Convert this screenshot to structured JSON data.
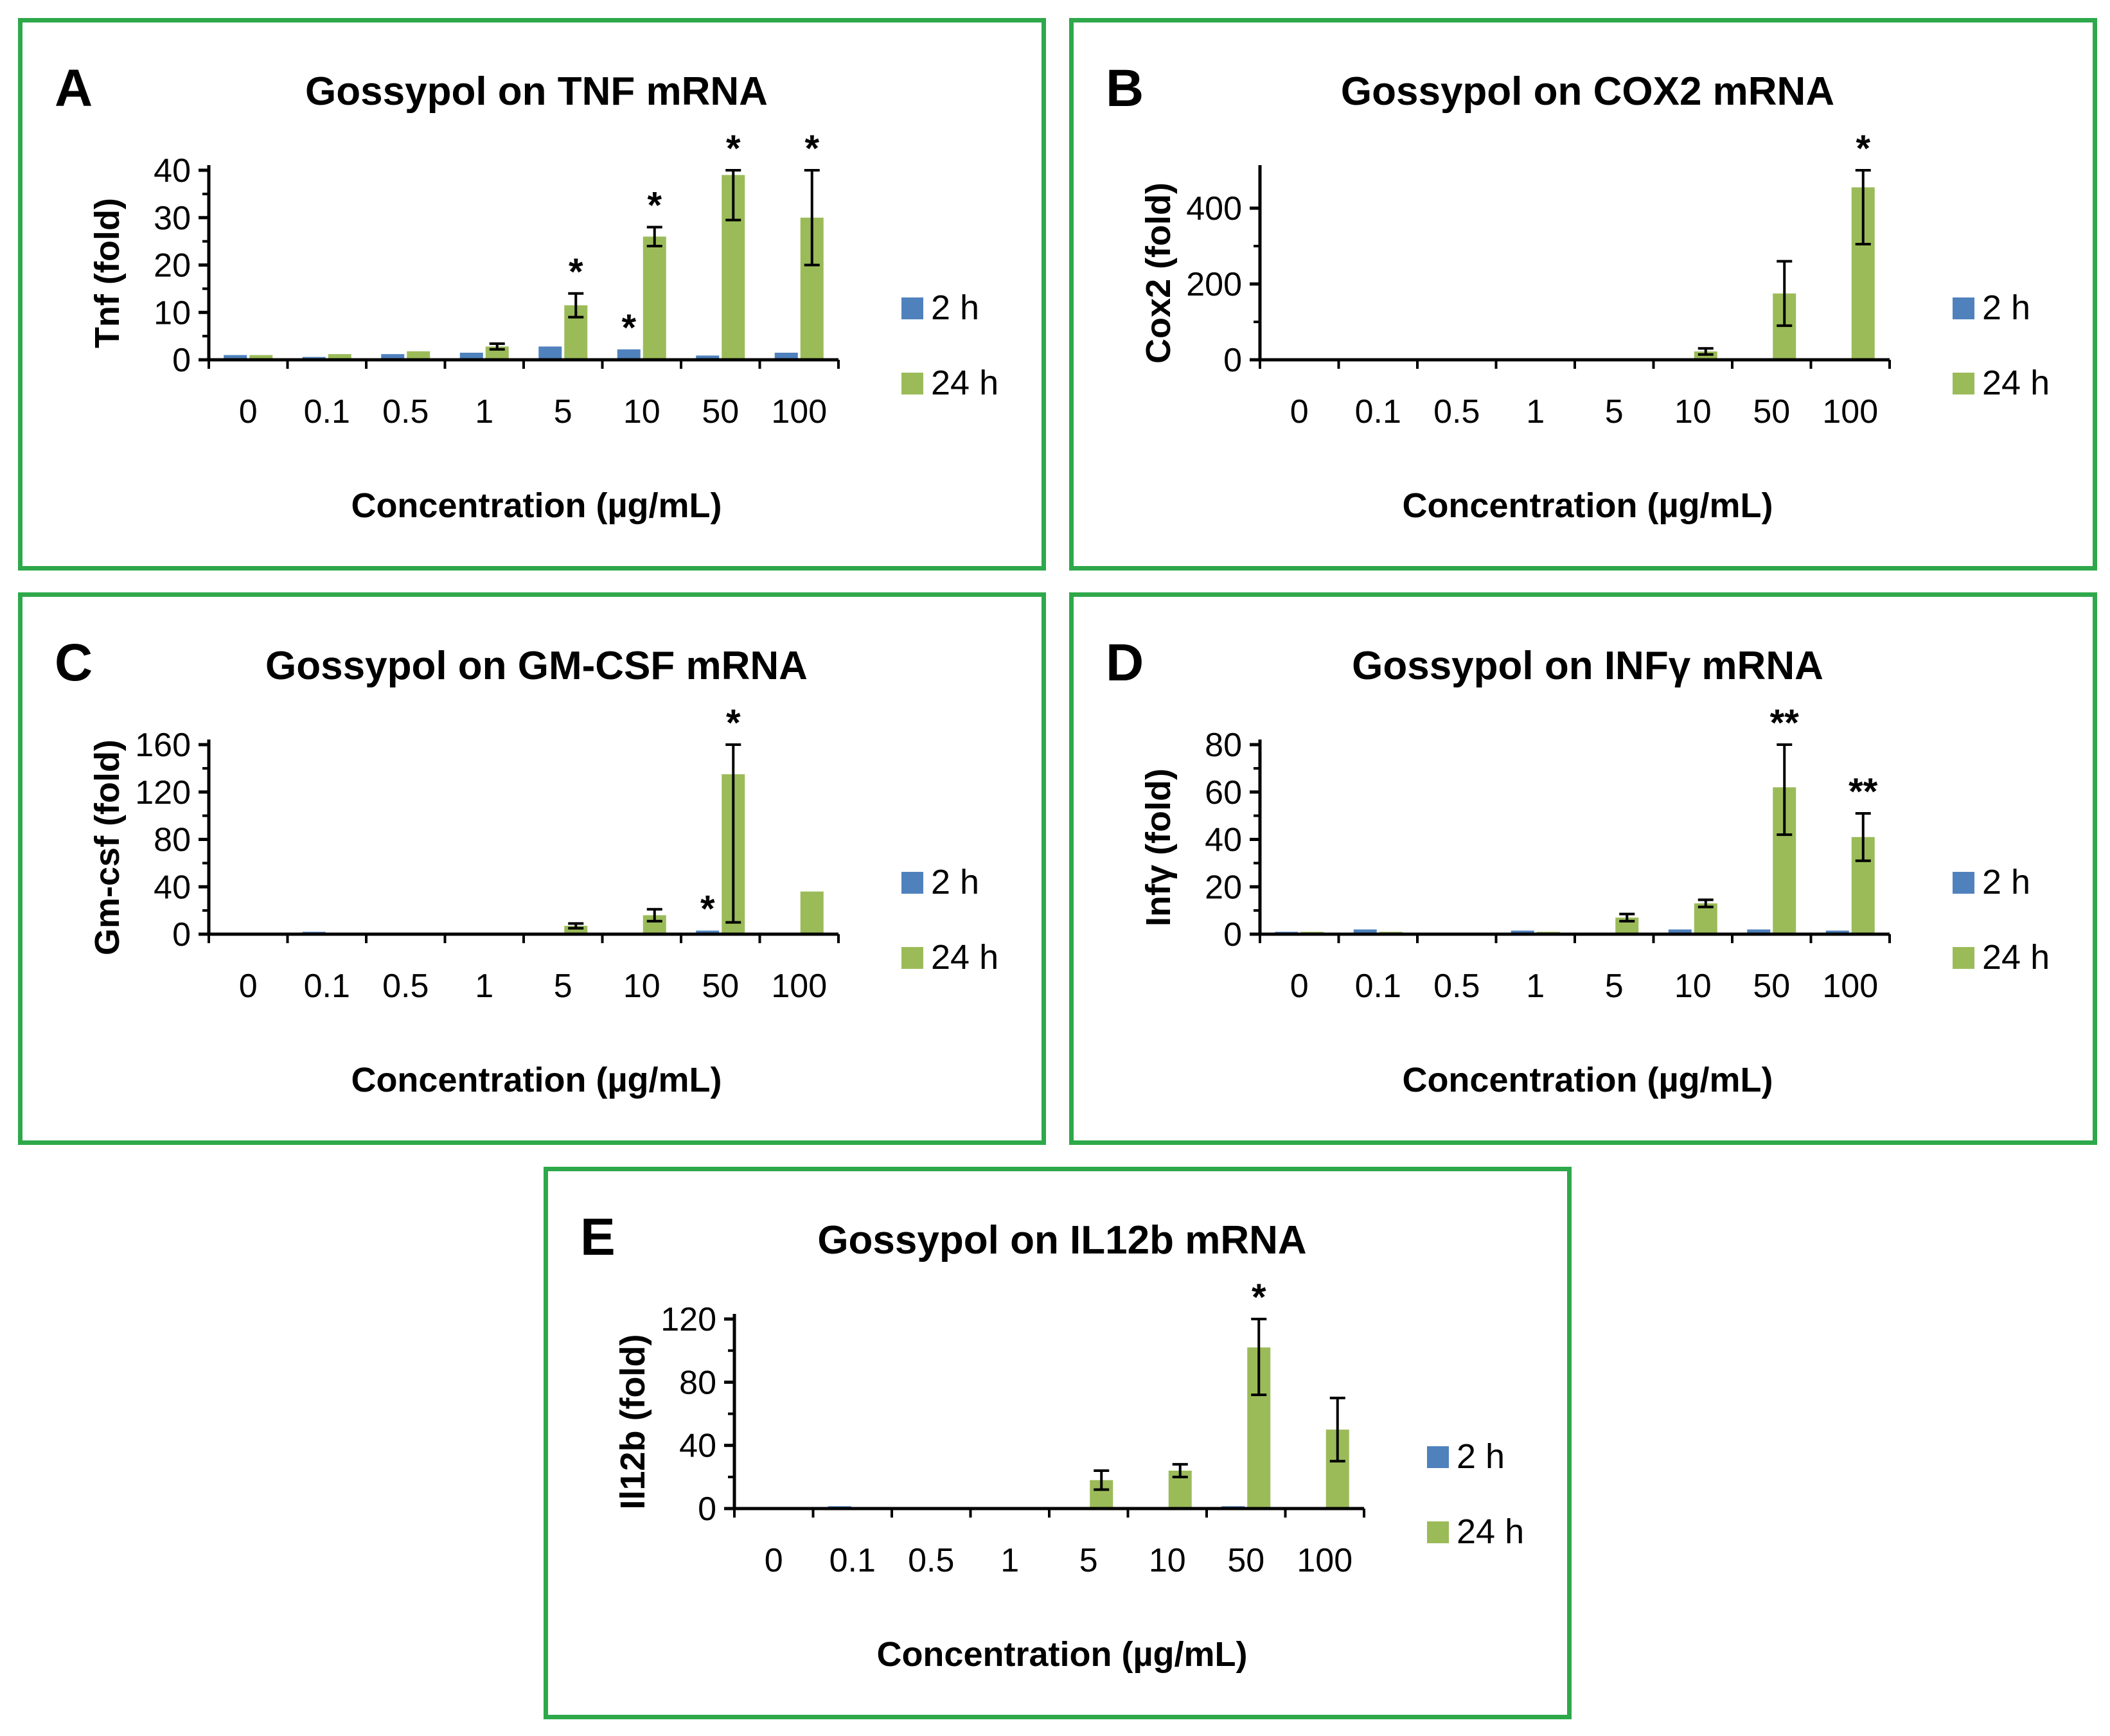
{
  "chart_data": [
    {
      "type": "bar",
      "panel": "A",
      "title": "Gossypol on TNF mRNA",
      "xlabel": "Concentration (µg/mL)",
      "ylabel": "Tnf (fold)",
      "categories": [
        "0",
        "0.1",
        "0.5",
        "1",
        "5",
        "10",
        "50",
        "100"
      ],
      "ylim": [
        0,
        40
      ],
      "yticks": [
        "0",
        "10",
        "20",
        "30",
        "40"
      ],
      "ytick_values": [
        0,
        10,
        20,
        30,
        40
      ],
      "series": [
        {
          "name": "2 h",
          "color": "#4f81bd",
          "values": [
            1,
            0.6,
            1.2,
            1.5,
            2.8,
            2.2,
            0.9,
            1.5
          ],
          "err": [
            0,
            0,
            0,
            0,
            0,
            0,
            0,
            0
          ]
        },
        {
          "name": "24 h",
          "color": "#9bbb59",
          "values": [
            1,
            1.2,
            1.8,
            2.8,
            11.5,
            26,
            39,
            30
          ],
          "err": [
            0,
            0,
            0,
            0.6,
            2.5,
            2,
            9.5,
            10
          ]
        }
      ],
      "significance": [
        {
          "series": 0,
          "index": 5,
          "text": "*"
        },
        {
          "series": 1,
          "index": 4,
          "text": "*"
        },
        {
          "series": 1,
          "index": 5,
          "text": "*"
        },
        {
          "series": 1,
          "index": 6,
          "text": "*"
        },
        {
          "series": 1,
          "index": 7,
          "text": "*"
        }
      ]
    },
    {
      "type": "bar",
      "panel": "B",
      "title": "Gossypol on COX2 mRNA",
      "xlabel": "Concentration (µg/mL)",
      "ylabel": "Cox2 (fold)",
      "categories": [
        "0",
        "0.1",
        "0.5",
        "1",
        "5",
        "10",
        "50",
        "100"
      ],
      "ylim": [
        0,
        500
      ],
      "yticks": [
        "0",
        "200",
        "400"
      ],
      "ytick_values": [
        0,
        200,
        400
      ],
      "series": [
        {
          "name": "2 h",
          "color": "#4f81bd",
          "values": [
            1,
            1,
            1,
            1,
            1,
            1,
            1,
            1
          ],
          "err": [
            0,
            0,
            0,
            0,
            0,
            0,
            0,
            0
          ]
        },
        {
          "name": "24 h",
          "color": "#9bbb59",
          "values": [
            1,
            1,
            1,
            1,
            4,
            22,
            175,
            455
          ],
          "err": [
            0,
            0,
            0,
            0,
            0,
            8,
            85,
            150
          ]
        }
      ],
      "significance": [
        {
          "series": 1,
          "index": 7,
          "text": "*"
        }
      ]
    },
    {
      "type": "bar",
      "panel": "C",
      "title": "Gossypol on GM-CSF mRNA",
      "xlabel": "Concentration (µg/mL)",
      "ylabel": "Gm-csf (fold)",
      "categories": [
        "0",
        "0.1",
        "0.5",
        "1",
        "5",
        "10",
        "50",
        "100"
      ],
      "ylim": [
        0,
        160
      ],
      "yticks": [
        "0",
        "40",
        "80",
        "120",
        "160"
      ],
      "ytick_values": [
        0,
        40,
        80,
        120,
        160
      ],
      "series": [
        {
          "name": "2 h",
          "color": "#4f81bd",
          "values": [
            1,
            2,
            1,
            1,
            1,
            1,
            3,
            1
          ],
          "err": [
            0,
            0,
            0,
            0,
            0,
            0,
            0,
            0
          ]
        },
        {
          "name": "24 h",
          "color": "#9bbb59",
          "values": [
            1,
            1,
            1,
            1,
            7,
            16,
            135,
            36
          ],
          "err": [
            0,
            0,
            0,
            0,
            2,
            5,
            125,
            0
          ]
        }
      ],
      "significance": [
        {
          "series": 0,
          "index": 6,
          "text": "*"
        },
        {
          "series": 1,
          "index": 6,
          "text": "*"
        }
      ]
    },
    {
      "type": "bar",
      "panel": "D",
      "title": "Gossypol on INFγ mRNA",
      "xlabel": "Concentration (µg/mL)",
      "ylabel": "Infγ (fold)",
      "categories": [
        "0",
        "0.1",
        "0.5",
        "1",
        "5",
        "10",
        "50",
        "100"
      ],
      "ylim": [
        0,
        80
      ],
      "yticks": [
        "0",
        "20",
        "40",
        "60",
        "80"
      ],
      "ytick_values": [
        0,
        20,
        40,
        60,
        80
      ],
      "series": [
        {
          "name": "2 h",
          "color": "#4f81bd",
          "values": [
            1,
            2,
            0.5,
            1.5,
            0.5,
            2,
            2,
            1.5
          ],
          "err": [
            0,
            0,
            0,
            0,
            0,
            0,
            0,
            0
          ]
        },
        {
          "name": "24 h",
          "color": "#9bbb59",
          "values": [
            1,
            1,
            0.5,
            1,
            7,
            13,
            62,
            41
          ],
          "err": [
            0,
            0,
            0,
            0,
            1.5,
            1.5,
            20,
            10
          ]
        }
      ],
      "significance": [
        {
          "series": 1,
          "index": 6,
          "text": "**"
        },
        {
          "series": 1,
          "index": 7,
          "text": "**"
        }
      ]
    },
    {
      "type": "bar",
      "panel": "E",
      "title": "Gossypol on IL12b mRNA",
      "xlabel": "Concentration (µg/mL)",
      "ylabel": "Il12b (fold)",
      "categories": [
        "0",
        "0.1",
        "0.5",
        "1",
        "5",
        "10",
        "50",
        "100"
      ],
      "ylim": [
        0,
        120
      ],
      "yticks": [
        "0",
        "40",
        "80",
        "120"
      ],
      "ytick_values": [
        0,
        40,
        80,
        120
      ],
      "series": [
        {
          "name": "2 h",
          "color": "#4f81bd",
          "values": [
            1,
            1.5,
            0.5,
            0.5,
            0.5,
            1,
            1.5,
            0.5
          ],
          "err": [
            0,
            0,
            0,
            0,
            0,
            0,
            0,
            0
          ]
        },
        {
          "name": "24 h",
          "color": "#9bbb59",
          "values": [
            1,
            1,
            0.5,
            0.5,
            18,
            24,
            102,
            50
          ],
          "err": [
            0,
            0,
            0,
            0,
            6,
            4,
            30,
            20
          ]
        }
      ],
      "significance": [
        {
          "series": 1,
          "index": 6,
          "text": "*"
        }
      ]
    }
  ]
}
